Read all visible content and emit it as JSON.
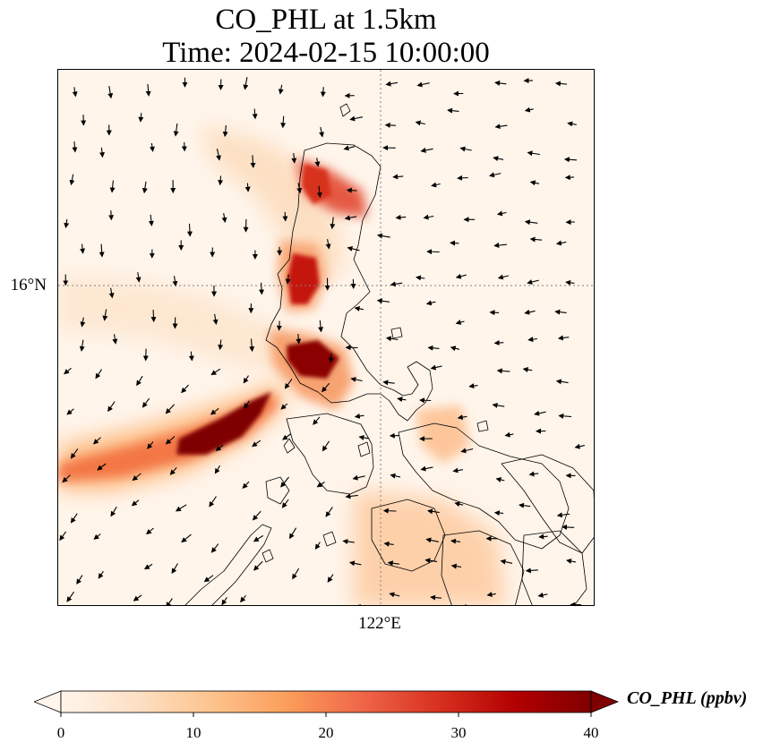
{
  "title": {
    "line1": "CO_PHL at 1.5km",
    "line2": "Time: 2024-02-15 10:00:00"
  },
  "map": {
    "variable": "CO_PHL",
    "height": "1.5km",
    "time": "2024-02-15 10:00:00",
    "latitude_gridline": "16°N",
    "longitude_gridline": "122°E",
    "background_color": "#fff5eb",
    "plume_colors": [
      "#fdd0a2",
      "#fdae6b",
      "#f16913",
      "#d94801",
      "#a63603",
      "#7f0000"
    ],
    "wind_arrow_color": "#000000",
    "coastline_color": "#000000",
    "gridline_style": "dotted"
  },
  "colorbar": {
    "label": "CO_PHL (ppbv)",
    "colormap": "OrRd",
    "min": 0,
    "max": 40,
    "extend": "both",
    "ticks": [
      "0",
      "10",
      "20",
      "30",
      "40"
    ],
    "stops": [
      "#fff5eb",
      "#fde0c5",
      "#fdc38d",
      "#fb9d5a",
      "#ef6548",
      "#d7301f",
      "#b30000",
      "#7f0000"
    ]
  }
}
